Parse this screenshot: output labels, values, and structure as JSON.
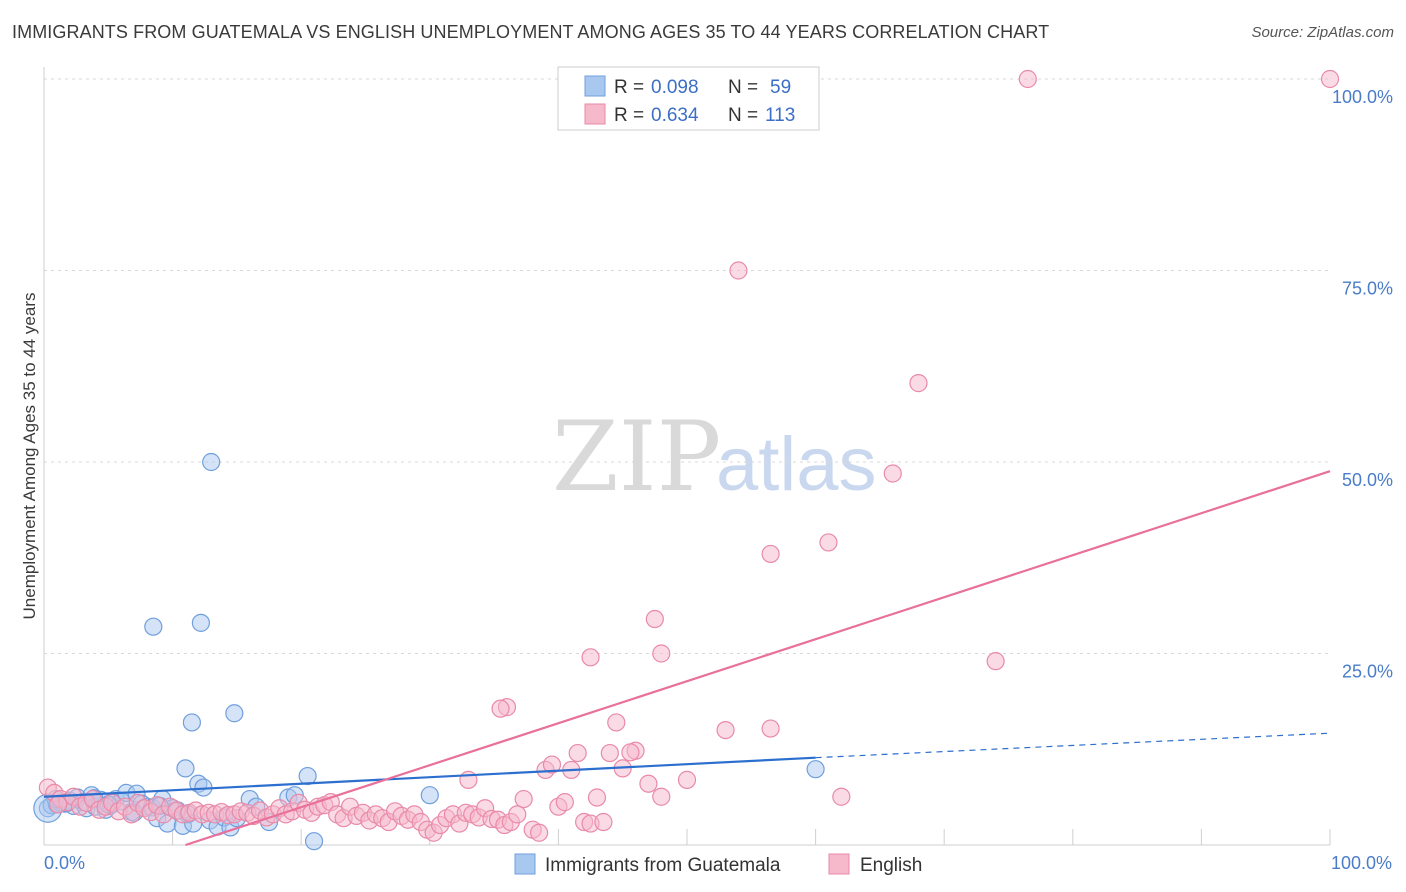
{
  "header": {
    "title": "IMMIGRANTS FROM GUATEMALA VS ENGLISH UNEMPLOYMENT AMONG AGES 35 TO 44 YEARS CORRELATION CHART",
    "source": "Source: ZipAtlas.com"
  },
  "watermark": {
    "part1": "ZIP",
    "part2": "atlas"
  },
  "legend_box": {
    "rows": [
      {
        "r_label": "R =",
        "r_value": "0.098",
        "n_label": "N =",
        "n_value": "59",
        "color": "#a9c8f0"
      },
      {
        "r_label": "R =",
        "r_value": "0.634",
        "n_label": "N =",
        "n_value": "113",
        "color": "#f6b8cb"
      }
    ]
  },
  "bottom_legend": {
    "items": [
      {
        "label": "Immigrants from Guatemala",
        "color": "#a9c8f0"
      },
      {
        "label": "English",
        "color": "#f6b8cb"
      }
    ]
  },
  "colors": {
    "blue_fill": "#a9c8f0",
    "blue_stroke": "#6f9fdc",
    "blue_line": "#2c6fcf",
    "pink_fill": "#f6b8cb",
    "pink_stroke": "#e98aa8",
    "pink_line": "#e8709a",
    "tick_text": "#4a7cc9",
    "grid": "#d8d8d8"
  },
  "chart_data": {
    "type": "scatter",
    "title": "IMMIGRANTS FROM GUATEMALA VS ENGLISH UNEMPLOYMENT AMONG AGES 35 TO 44 YEARS CORRELATION CHART",
    "xlabel": "",
    "ylabel": "Unemployment Among Ages 35 to 44 years",
    "xlim": [
      0,
      100
    ],
    "ylim": [
      0,
      100
    ],
    "x_tick_labels": [
      "0.0%",
      "100.0%"
    ],
    "y_ticks": [
      25,
      50,
      75,
      100
    ],
    "y_tick_labels": [
      "25.0%",
      "50.0%",
      "75.0%",
      "100.0%"
    ],
    "grid": true,
    "legend_position": "top-center",
    "series": [
      {
        "name": "Immigrants from Guatemala",
        "stats": {
          "R": 0.098,
          "N": 59
        },
        "trend": {
          "x0": 0,
          "y0": 6.3,
          "x1": 60,
          "y1": 11.4,
          "dashed_to_x": 100,
          "dashed_to_y": 14.6
        },
        "points": [
          [
            0.3,
            4.8
          ],
          [
            0.6,
            5.2
          ],
          [
            1.0,
            5.3
          ],
          [
            1.3,
            5.5
          ],
          [
            1.6,
            5.4
          ],
          [
            2.0,
            5.8
          ],
          [
            2.3,
            5.1
          ],
          [
            2.6,
            6.2
          ],
          [
            3.0,
            5.6
          ],
          [
            3.3,
            4.8
          ],
          [
            3.7,
            6.5
          ],
          [
            4.0,
            5.0
          ],
          [
            4.4,
            5.9
          ],
          [
            4.8,
            4.6
          ],
          [
            5.2,
            5.2
          ],
          [
            5.6,
            6.0
          ],
          [
            6.0,
            5.7
          ],
          [
            6.4,
            6.8
          ],
          [
            6.8,
            4.3
          ],
          [
            7.2,
            6.7
          ],
          [
            7.6,
            5.4
          ],
          [
            8.0,
            5.0
          ],
          [
            8.4,
            4.9
          ],
          [
            8.8,
            3.5
          ],
          [
            9.2,
            6.0
          ],
          [
            9.6,
            2.8
          ],
          [
            10.0,
            4.8
          ],
          [
            10.4,
            4.5
          ],
          [
            10.8,
            2.5
          ],
          [
            11.2,
            4.0
          ],
          [
            11.6,
            2.8
          ],
          [
            12.0,
            8.0
          ],
          [
            12.4,
            7.5
          ],
          [
            12.9,
            3.2
          ],
          [
            13.5,
            2.4
          ],
          [
            14.0,
            3.6
          ],
          [
            14.5,
            2.3
          ],
          [
            15.0,
            3.5
          ],
          [
            16.0,
            6.0
          ],
          [
            16.5,
            5.0
          ],
          [
            17.5,
            3.0
          ],
          [
            19.0,
            6.2
          ],
          [
            19.5,
            6.5
          ],
          [
            20.5,
            9.0
          ],
          [
            21.0,
            0.5
          ],
          [
            30.0,
            6.5
          ],
          [
            60.0,
            9.9
          ],
          [
            8.5,
            28.5
          ],
          [
            12.2,
            29.0
          ],
          [
            13.0,
            50.0
          ],
          [
            11.5,
            16.0
          ],
          [
            14.8,
            17.2
          ],
          [
            11.0,
            10.0
          ],
          [
            1.8,
            5.5
          ],
          [
            0.9,
            6.0
          ],
          [
            5.0,
            5.3
          ],
          [
            9.0,
            5.1
          ],
          [
            3.9,
            6.1
          ],
          [
            7.0,
            4.2
          ]
        ]
      },
      {
        "name": "English",
        "stats": {
          "R": 0.634,
          "N": 113
        },
        "trend": {
          "x0": 11,
          "y0": 0,
          "x1": 100,
          "y1": 48.8
        },
        "points": [
          [
            0.3,
            7.5
          ],
          [
            0.8,
            6.8
          ],
          [
            1.3,
            6.0
          ],
          [
            1.8,
            5.6
          ],
          [
            2.3,
            6.3
          ],
          [
            2.8,
            5.0
          ],
          [
            3.3,
            5.5
          ],
          [
            3.8,
            6.0
          ],
          [
            4.3,
            4.6
          ],
          [
            4.8,
            5.0
          ],
          [
            5.3,
            5.5
          ],
          [
            5.8,
            4.4
          ],
          [
            6.3,
            5.0
          ],
          [
            6.8,
            4.0
          ],
          [
            7.3,
            5.5
          ],
          [
            7.8,
            4.8
          ],
          [
            8.3,
            4.3
          ],
          [
            8.8,
            5.2
          ],
          [
            9.3,
            4.0
          ],
          [
            9.8,
            5.0
          ],
          [
            10.3,
            4.5
          ],
          [
            10.8,
            4.0
          ],
          [
            11.3,
            4.2
          ],
          [
            11.8,
            4.5
          ],
          [
            12.3,
            4.0
          ],
          [
            12.8,
            4.2
          ],
          [
            13.3,
            4.0
          ],
          [
            13.8,
            4.3
          ],
          [
            14.3,
            3.9
          ],
          [
            14.8,
            4.0
          ],
          [
            15.3,
            4.4
          ],
          [
            15.8,
            4.2
          ],
          [
            16.3,
            3.8
          ],
          [
            16.8,
            4.5
          ],
          [
            17.3,
            3.6
          ],
          [
            17.8,
            4.0
          ],
          [
            18.3,
            4.8
          ],
          [
            18.8,
            4.0
          ],
          [
            19.3,
            4.4
          ],
          [
            19.8,
            5.5
          ],
          [
            20.3,
            4.6
          ],
          [
            20.8,
            4.2
          ],
          [
            21.3,
            5.0
          ],
          [
            21.8,
            5.2
          ],
          [
            22.3,
            5.6
          ],
          [
            22.8,
            4.0
          ],
          [
            23.3,
            3.5
          ],
          [
            23.8,
            5.0
          ],
          [
            24.3,
            3.8
          ],
          [
            24.8,
            4.2
          ],
          [
            25.3,
            3.2
          ],
          [
            25.8,
            4.0
          ],
          [
            26.3,
            3.5
          ],
          [
            26.8,
            3.0
          ],
          [
            27.3,
            4.4
          ],
          [
            27.8,
            3.8
          ],
          [
            28.3,
            3.3
          ],
          [
            28.8,
            4.0
          ],
          [
            29.3,
            3.0
          ],
          [
            29.8,
            2.0
          ],
          [
            30.3,
            1.6
          ],
          [
            30.8,
            2.6
          ],
          [
            31.3,
            3.5
          ],
          [
            31.8,
            4.0
          ],
          [
            32.3,
            2.8
          ],
          [
            32.8,
            4.2
          ],
          [
            33.3,
            4.0
          ],
          [
            33.8,
            3.6
          ],
          [
            34.3,
            4.8
          ],
          [
            34.8,
            3.4
          ],
          [
            35.3,
            3.3
          ],
          [
            35.8,
            2.6
          ],
          [
            36.3,
            3.0
          ],
          [
            36.8,
            4.0
          ],
          [
            37.3,
            6.0
          ],
          [
            38.0,
            2.0
          ],
          [
            38.5,
            1.6
          ],
          [
            39.0,
            9.8
          ],
          [
            39.5,
            10.5
          ],
          [
            40.0,
            5.0
          ],
          [
            40.5,
            5.6
          ],
          [
            41.0,
            9.8
          ],
          [
            41.5,
            12.0
          ],
          [
            42.0,
            3.0
          ],
          [
            42.5,
            2.8
          ],
          [
            43.0,
            6.2
          ],
          [
            43.5,
            3.0
          ],
          [
            44.0,
            12.0
          ],
          [
            45.0,
            10.0
          ],
          [
            46.0,
            12.3
          ],
          [
            47.0,
            8.0
          ],
          [
            48.0,
            6.3
          ],
          [
            50.0,
            8.5
          ],
          [
            53.0,
            15.0
          ],
          [
            56.5,
            15.2
          ],
          [
            33.0,
            8.5
          ],
          [
            36.0,
            18.0
          ],
          [
            35.5,
            17.8
          ],
          [
            44.5,
            16.0
          ],
          [
            42.5,
            24.5
          ],
          [
            48.0,
            25.0
          ],
          [
            47.5,
            29.5
          ],
          [
            54.0,
            75.0
          ],
          [
            56.5,
            38.0
          ],
          [
            61.0,
            39.5
          ],
          [
            66.0,
            48.5
          ],
          [
            68.0,
            60.3
          ],
          [
            74.0,
            24.0
          ],
          [
            76.5,
            100.0
          ],
          [
            100.0,
            100.0
          ],
          [
            62.0,
            6.3
          ],
          [
            45.6,
            12.1
          ],
          [
            1.1,
            5.3
          ]
        ]
      }
    ]
  }
}
